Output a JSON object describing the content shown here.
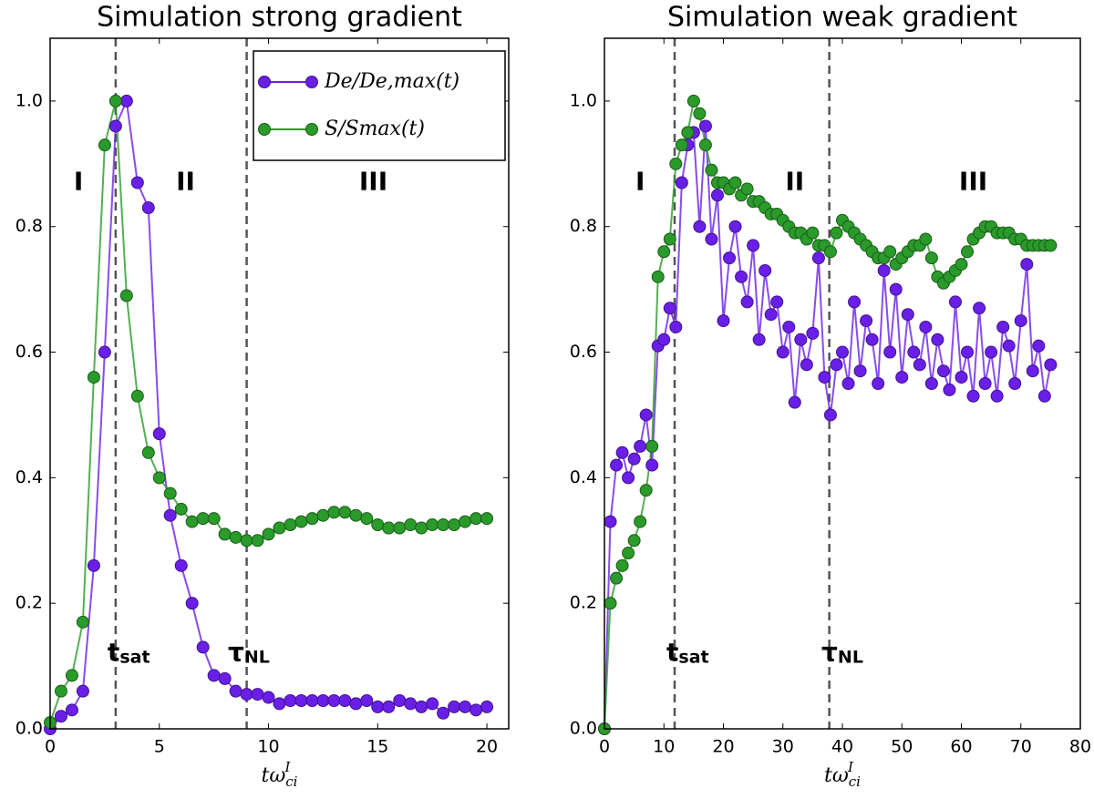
{
  "chart_data": [
    {
      "type": "line",
      "title": "Simulation strong gradient",
      "x_label": {
        "text": "tω",
        "sub": "ci",
        "sup": "I"
      },
      "xlim": [
        0,
        21
      ],
      "ylim": [
        0,
        1.1
      ],
      "xticks": [
        0,
        5,
        10,
        15,
        20
      ],
      "yticks": [
        {
          "value": 0,
          "label": "0.0"
        },
        {
          "value": 0.2,
          "label": "0.2"
        },
        {
          "value": 0.4,
          "label": "0.4"
        },
        {
          "value": 0.6,
          "label": "0.6"
        },
        {
          "value": 0.8,
          "label": "0.8"
        },
        {
          "value": 1.0,
          "label": "1.0"
        }
      ],
      "vlines": [
        3,
        9
      ],
      "legend": "upper right",
      "annotations": [
        {
          "text": "I",
          "x": 1.3,
          "y": 0.87
        },
        {
          "text": "II",
          "x": 6.2,
          "y": 0.87
        },
        {
          "text": "III",
          "x": 14.8,
          "y": 0.87
        },
        {
          "text": "t",
          "sub": "sat",
          "x": 3.6,
          "y": 0.12
        },
        {
          "text": "τ",
          "sub": "NL",
          "x": 9.1,
          "y": 0.12
        }
      ],
      "x": [
        0,
        0.5,
        1,
        1.5,
        2,
        2.5,
        3,
        3.5,
        4,
        4.5,
        5,
        5.5,
        6,
        6.5,
        7,
        7.5,
        8,
        8.5,
        9,
        9.5,
        10,
        10.5,
        11,
        11.5,
        12,
        12.5,
        13,
        13.5,
        14,
        14.5,
        15,
        15.5,
        16,
        16.5,
        17,
        17.5,
        18,
        18.5,
        19,
        19.5,
        20
      ],
      "series": [
        {
          "name": "De/De,max(t)",
          "color": "#6a1fe8",
          "values": [
            0.0,
            0.02,
            0.03,
            0.06,
            0.26,
            0.6,
            0.96,
            1.0,
            0.87,
            0.83,
            0.47,
            0.34,
            0.26,
            0.2,
            0.13,
            0.085,
            0.08,
            0.06,
            0.055,
            0.055,
            0.05,
            0.04,
            0.045,
            0.045,
            0.045,
            0.045,
            0.045,
            0.045,
            0.04,
            0.045,
            0.035,
            0.035,
            0.045,
            0.04,
            0.035,
            0.04,
            0.025,
            0.035,
            0.035,
            0.03,
            0.035
          ]
        },
        {
          "name": "S/Smax(t)",
          "color": "#2a9a2a",
          "values": [
            0.01,
            0.06,
            0.085,
            0.17,
            0.56,
            0.93,
            1.0,
            0.69,
            0.53,
            0.44,
            0.4,
            0.375,
            0.35,
            0.33,
            0.335,
            0.335,
            0.31,
            0.305,
            0.3,
            0.3,
            0.31,
            0.32,
            0.325,
            0.33,
            0.335,
            0.34,
            0.345,
            0.345,
            0.34,
            0.335,
            0.325,
            0.32,
            0.32,
            0.325,
            0.32,
            0.325,
            0.325,
            0.325,
            0.33,
            0.335,
            0.335
          ]
        }
      ]
    },
    {
      "type": "line",
      "title": "Simulation weak gradient",
      "x_label": {
        "text": "tω",
        "sub": "ci",
        "sup": "I"
      },
      "xlim": [
        0,
        80
      ],
      "ylim": [
        0,
        1.1
      ],
      "xticks": [
        0,
        10,
        20,
        30,
        40,
        50,
        60,
        70,
        80
      ],
      "yticks": [
        {
          "value": 0,
          "label": "0.0"
        },
        {
          "value": 0.2,
          "label": "0.2"
        },
        {
          "value": 0.4,
          "label": "0.4"
        },
        {
          "value": 0.6,
          "label": "0.6"
        },
        {
          "value": 0.8,
          "label": "0.8"
        },
        {
          "value": 1.0,
          "label": "1.0"
        }
      ],
      "vlines": [
        11.8,
        37.8
      ],
      "annotations": [
        {
          "text": "I",
          "x": 6,
          "y": 0.87
        },
        {
          "text": "II",
          "x": 32,
          "y": 0.87
        },
        {
          "text": "III",
          "x": 62,
          "y": 0.87
        },
        {
          "text": "t",
          "sub": "sat",
          "x": 14,
          "y": 0.12
        },
        {
          "text": "τ",
          "sub": "NL",
          "x": 40,
          "y": 0.12
        }
      ],
      "x": [
        0,
        1,
        2,
        3,
        4,
        5,
        6,
        7,
        8,
        9,
        10,
        11,
        12,
        13,
        14,
        15,
        16,
        17,
        18,
        19,
        20,
        21,
        22,
        23,
        24,
        25,
        26,
        27,
        28,
        29,
        30,
        31,
        32,
        33,
        34,
        35,
        36,
        37,
        38,
        39,
        40,
        41,
        42,
        43,
        44,
        45,
        46,
        47,
        48,
        49,
        50,
        51,
        52,
        53,
        54,
        55,
        56,
        57,
        58,
        59,
        60,
        61,
        62,
        63,
        64,
        65,
        66,
        67,
        68,
        69,
        70,
        71,
        72,
        73,
        74,
        75
      ],
      "series": [
        {
          "color": "#6a1fe8",
          "values": [
            0.0,
            0.33,
            0.42,
            0.44,
            0.4,
            0.43,
            0.45,
            0.5,
            0.42,
            0.61,
            0.62,
            0.67,
            0.64,
            0.87,
            0.93,
            0.95,
            0.8,
            0.96,
            0.78,
            0.85,
            0.65,
            0.75,
            0.8,
            0.72,
            0.68,
            0.77,
            0.62,
            0.73,
            0.66,
            0.68,
            0.6,
            0.64,
            0.52,
            0.62,
            0.58,
            0.63,
            0.75,
            0.56,
            0.5,
            0.58,
            0.6,
            0.55,
            0.68,
            0.57,
            0.65,
            0.62,
            0.55,
            0.73,
            0.6,
            0.7,
            0.56,
            0.66,
            0.6,
            0.58,
            0.64,
            0.55,
            0.62,
            0.57,
            0.54,
            0.68,
            0.56,
            0.6,
            0.53,
            0.67,
            0.55,
            0.6,
            0.53,
            0.64,
            0.61,
            0.55,
            0.65,
            0.74,
            0.57,
            0.61,
            0.53,
            0.58
          ]
        },
        {
          "color": "#2a9a2a",
          "values": [
            0.0,
            0.2,
            0.24,
            0.26,
            0.28,
            0.3,
            0.33,
            0.38,
            0.45,
            0.72,
            0.76,
            0.78,
            0.9,
            0.93,
            0.95,
            1.0,
            0.98,
            0.93,
            0.89,
            0.87,
            0.87,
            0.86,
            0.87,
            0.85,
            0.86,
            0.84,
            0.84,
            0.83,
            0.82,
            0.82,
            0.81,
            0.8,
            0.79,
            0.79,
            0.78,
            0.79,
            0.77,
            0.77,
            0.76,
            0.79,
            0.81,
            0.8,
            0.79,
            0.78,
            0.77,
            0.76,
            0.75,
            0.75,
            0.76,
            0.74,
            0.75,
            0.76,
            0.77,
            0.77,
            0.78,
            0.75,
            0.72,
            0.71,
            0.72,
            0.73,
            0.74,
            0.76,
            0.78,
            0.79,
            0.8,
            0.8,
            0.79,
            0.79,
            0.79,
            0.78,
            0.78,
            0.77,
            0.77,
            0.77,
            0.77,
            0.77
          ]
        }
      ]
    }
  ]
}
